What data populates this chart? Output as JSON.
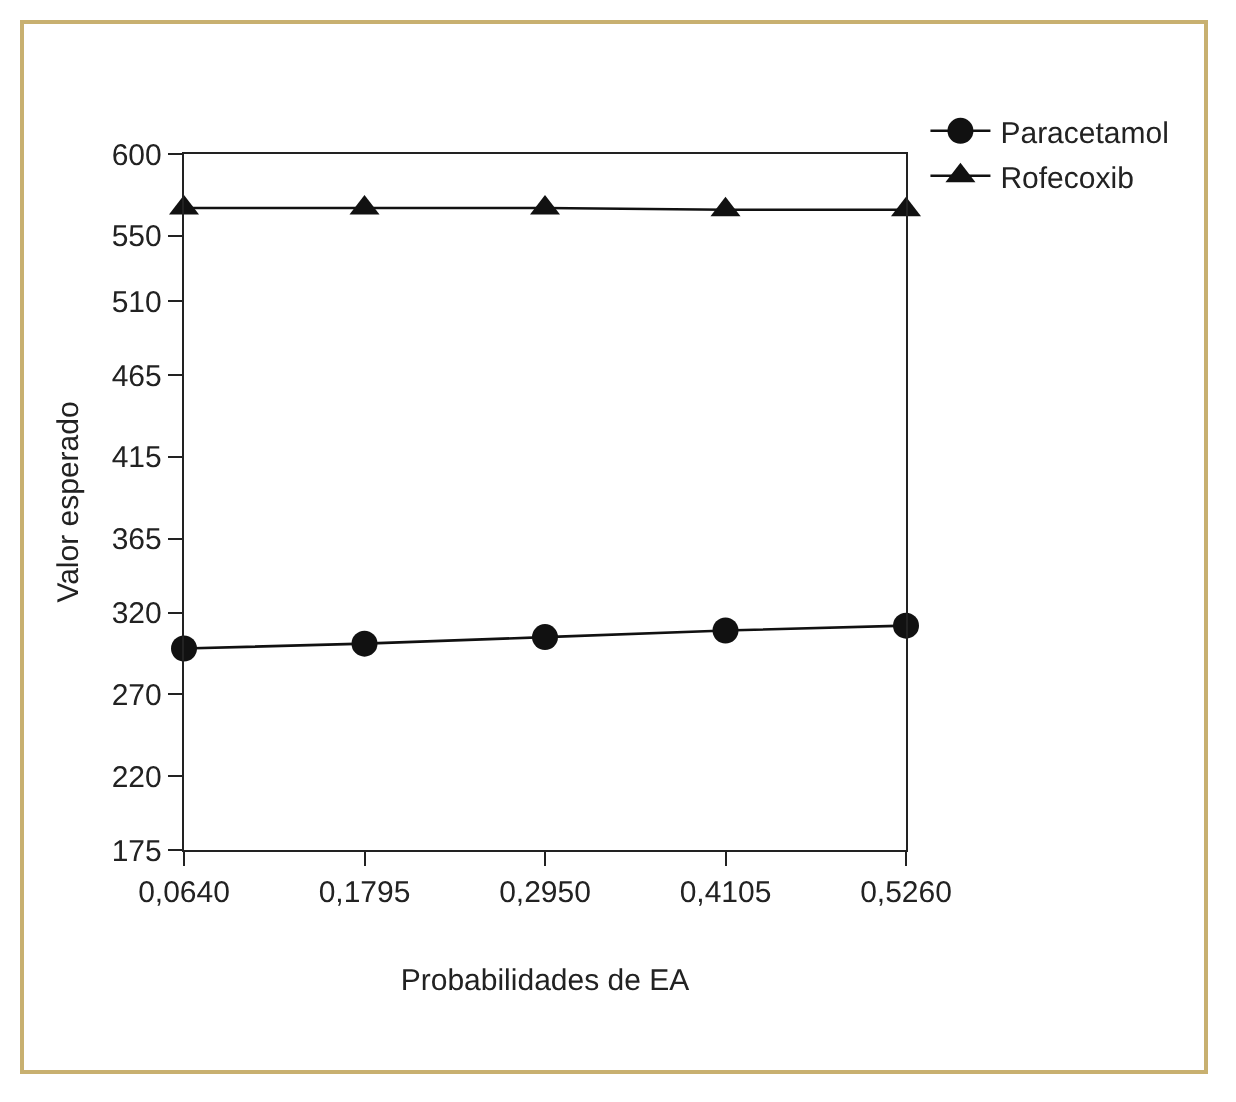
{
  "chart_data": {
    "type": "line",
    "xlabel": "Probabilidades de EA",
    "ylabel": "Valor esperado",
    "x": [
      0.064,
      0.1795,
      0.295,
      0.4105,
      0.526
    ],
    "series": [
      {
        "name": "Paracetamol",
        "color": "#111111",
        "marker": "circle",
        "values": [
          298,
          301,
          305,
          309,
          312
        ]
      },
      {
        "name": "Rofecoxib",
        "color": "#111111",
        "marker": "triangle",
        "values": [
          567,
          567,
          567,
          566,
          566
        ]
      }
    ],
    "xlim": [
      0.064,
      0.526
    ],
    "xticks": [
      {
        "value": 0.064,
        "label": "0,0640"
      },
      {
        "value": 0.1795,
        "label": "0,1795"
      },
      {
        "value": 0.295,
        "label": "0,2950"
      },
      {
        "value": 0.4105,
        "label": "0,4105"
      },
      {
        "value": 0.526,
        "label": "0,5260"
      }
    ],
    "ylim": [
      175,
      600
    ],
    "yticks": [
      175,
      220,
      270,
      320,
      365,
      415,
      465,
      510,
      550,
      600
    ],
    "grid": false,
    "legend": "top right",
    "line_style": "solid"
  }
}
